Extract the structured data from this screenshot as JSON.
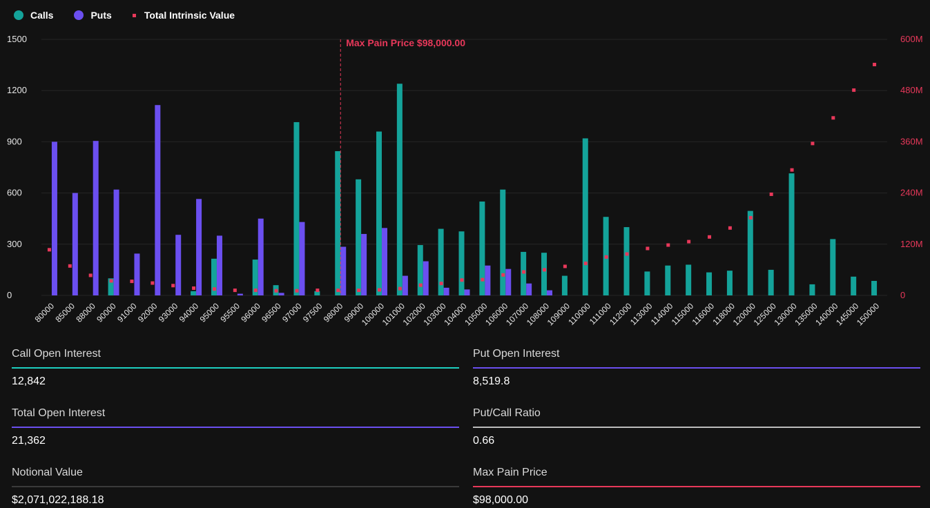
{
  "legend": {
    "calls": "Calls",
    "puts": "Puts",
    "intrinsic": "Total Intrinsic Value"
  },
  "annotation": "Max Pain Price $98,000.00",
  "colors": {
    "calls": "#14a39a",
    "puts": "#6b4ff0",
    "intrinsic": "#e8385a",
    "grid": "#262626",
    "axis_left": "#e6e6e6",
    "axis_right": "#e8385a",
    "stat_call": "#1dcfc0",
    "stat_put": "#6b4ff0",
    "stat_total": "#6b4ff0",
    "stat_ratio": "#bdbdbd",
    "stat_notional": "#3a3a3a",
    "stat_maxpain": "#e8385a"
  },
  "stats": [
    {
      "label": "Call Open Interest",
      "value": "12,842"
    },
    {
      "label": "Put Open Interest",
      "value": "8,519.8"
    },
    {
      "label": "Total Open Interest",
      "value": "21,362"
    },
    {
      "label": "Put/Call Ratio",
      "value": "0.66"
    },
    {
      "label": "Notional Value",
      "value": "$2,071,022,188.18"
    },
    {
      "label": "Max Pain Price",
      "value": "$98,000.00"
    }
  ],
  "chart_data": {
    "type": "bar",
    "categories": [
      "80000",
      "85000",
      "88000",
      "90000",
      "91000",
      "92000",
      "93000",
      "94000",
      "95000",
      "95500",
      "96000",
      "96500",
      "97000",
      "97500",
      "98000",
      "99000",
      "100000",
      "101000",
      "102000",
      "103000",
      "104000",
      "105000",
      "106000",
      "107000",
      "108000",
      "109000",
      "110000",
      "111000",
      "112000",
      "113000",
      "114000",
      "115000",
      "116000",
      "118000",
      "120000",
      "125000",
      "130000",
      "135000",
      "140000",
      "145000",
      "150000"
    ],
    "series": [
      {
        "name": "Calls",
        "values": [
          0,
          0,
          0,
          100,
          0,
          0,
          0,
          25,
          215,
          0,
          210,
          60,
          1015,
          25,
          845,
          680,
          960,
          1240,
          295,
          390,
          375,
          550,
          620,
          255,
          250,
          115,
          920,
          460,
          400,
          140,
          175,
          180,
          135,
          145,
          495,
          150,
          715,
          65,
          330,
          110,
          85
        ]
      },
      {
        "name": "Puts",
        "values": [
          900,
          600,
          905,
          620,
          245,
          1115,
          355,
          565,
          350,
          10,
          450,
          15,
          430,
          0,
          285,
          360,
          395,
          115,
          200,
          45,
          35,
          175,
          155,
          70,
          30,
          0,
          0,
          0,
          0,
          0,
          0,
          0,
          0,
          0,
          0,
          0,
          0,
          0,
          0,
          0,
          0
        ]
      },
      {
        "name": "Total Intrinsic Value",
        "type": "scatter",
        "axis": "right",
        "values": [
          107,
          69,
          47,
          34,
          33,
          29,
          23,
          17,
          15,
          12,
          12,
          11,
          11,
          12,
          12,
          12,
          13,
          16,
          24,
          28,
          36,
          37,
          48,
          55,
          60,
          68,
          75,
          90,
          97,
          110,
          118,
          126,
          137,
          158,
          182,
          237,
          294,
          356,
          416,
          481,
          541
        ]
      }
    ],
    "yleft": {
      "min": 0,
      "max": 1500,
      "ticks": [
        0,
        300,
        600,
        900,
        1200,
        1500
      ]
    },
    "yright": {
      "min": 0,
      "max": 600,
      "ticks": [
        0,
        120,
        240,
        360,
        480,
        600
      ],
      "tick_labels": [
        "0",
        "120M",
        "240M",
        "360M",
        "480M",
        "600M"
      ]
    },
    "marker_category": "98000",
    "grid": true,
    "legend_position": "top-left"
  }
}
